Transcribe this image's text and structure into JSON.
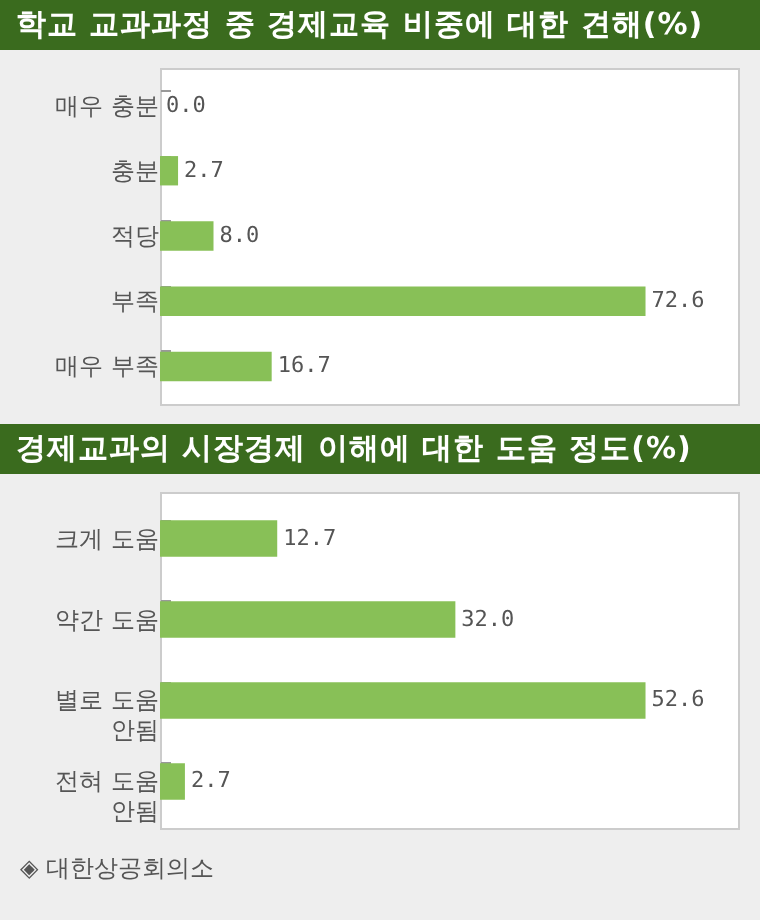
{
  "chart_data": [
    {
      "type": "bar",
      "orientation": "horizontal",
      "title": "학교 교과과정 중 경제교육 비중에 대한 견해(%)",
      "categories": [
        "매우 충분",
        "충분",
        "적당",
        "부족",
        "매우 부족"
      ],
      "values": [
        0.0,
        2.7,
        8.0,
        72.6,
        16.7
      ],
      "color": "#88c057",
      "value_labels": [
        "0.0",
        "2.7",
        "8.0",
        "72.6",
        "16.7"
      ]
    },
    {
      "type": "bar",
      "orientation": "horizontal",
      "title": "경제교과의 시장경제 이해에 대한 도움 정도(%)",
      "categories": [
        "크게 도움",
        "약간 도움",
        "별로 도움 안됨",
        "전혀 도움 안됨"
      ],
      "values": [
        12.7,
        32.0,
        52.6,
        2.7
      ],
      "color": "#88c057",
      "value_labels": [
        "12.7",
        "32.0",
        "52.6",
        "2.7"
      ],
      "annotations": [
        "◈ 대한상공회의소"
      ]
    }
  ]
}
